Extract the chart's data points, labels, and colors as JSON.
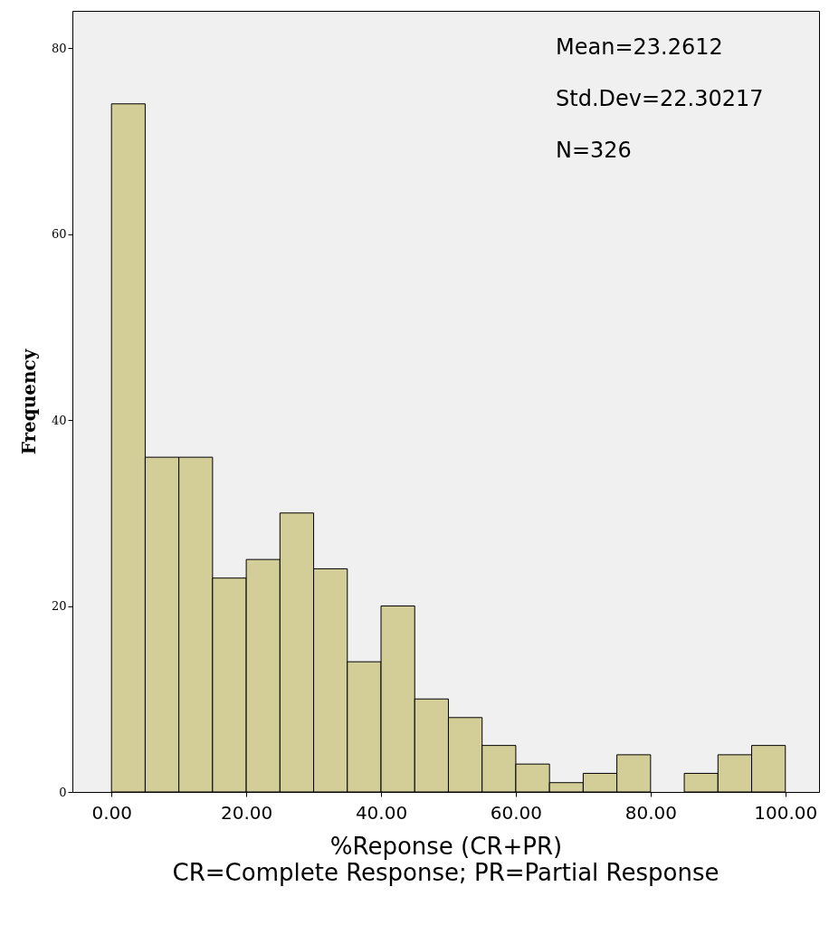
{
  "chart_data": {
    "type": "histogram",
    "xlabel": "%Reponse (CR+PR)",
    "ylabel": "Frequency",
    "bins": [
      0,
      5,
      10,
      15,
      20,
      25,
      30,
      35,
      40,
      45,
      50,
      55,
      60,
      65,
      70,
      75,
      80,
      85,
      90,
      95,
      100
    ],
    "values": [
      74,
      36,
      36,
      23,
      25,
      30,
      24,
      14,
      20,
      10,
      8,
      5,
      3,
      1,
      2,
      4,
      0,
      2,
      4,
      5
    ],
    "color": "#d3ce97",
    "xlim": [
      -5.8,
      105
    ],
    "ylim": [
      0,
      84
    ],
    "xticks": [
      {
        "value": 0,
        "label": "0.00"
      },
      {
        "value": 20,
        "label": "20.00"
      },
      {
        "value": 40,
        "label": "40.00"
      },
      {
        "value": 60,
        "label": "60.00"
      },
      {
        "value": 80,
        "label": "80.00"
      },
      {
        "value": 100,
        "label": "100.00"
      }
    ],
    "yticks": [
      0,
      20,
      40,
      60,
      80
    ],
    "annotations": [
      "Mean=23.2612",
      "Std.Dev=22.30217",
      "N=326",
      "CR=Complete Response; PR=Partial Response"
    ]
  }
}
